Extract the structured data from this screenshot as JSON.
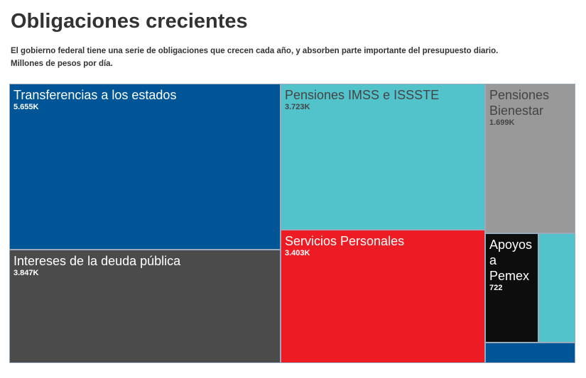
{
  "chart_data": {
    "type": "treemap",
    "title": "Obligaciones crecientes",
    "subtitle": "El gobierno federal tiene una serie de obligaciones que crecen cada año, y absorben parte importante del presupuesto diario.",
    "units": "Millones de pesos por día.",
    "items": [
      {
        "label": "Transferencias a los estados",
        "value_label": "5.655K",
        "value": 5655,
        "color": "#005596",
        "text_color": "#ffffff"
      },
      {
        "label": "Intereses de la deuda pública",
        "value_label": "3.847K",
        "value": 3847,
        "color": "#4b4b4b",
        "text_color": "#ffffff"
      },
      {
        "label": "Pensiones IMSS e ISSSTE",
        "value_label": "3.723K",
        "value": 3723,
        "color": "#53c3cb",
        "text_color": "#444444"
      },
      {
        "label": "Servicios Personales",
        "value_label": "3.403K",
        "value": 3403,
        "color": "#ed1c24",
        "text_color": "#ffffff"
      },
      {
        "label": "Pensiones Bienestar",
        "value_label": "1.699K",
        "value": 1699,
        "color": "#999999",
        "text_color": "#444444"
      },
      {
        "label": "Apoyos a Pemex",
        "value_label": "722",
        "value": 722,
        "color": "#0d0d0d",
        "text_color": "#ffffff"
      },
      {
        "label": "",
        "value_label": "",
        "color": "#53c3cb",
        "text_color": "#444444"
      },
      {
        "label": "",
        "value_label": "",
        "color": "#005596",
        "text_color": "#ffffff"
      }
    ]
  }
}
